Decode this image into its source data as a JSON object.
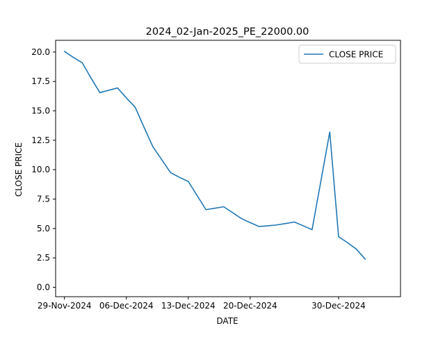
{
  "chart_data": {
    "type": "line",
    "title": "2024_02-Jan-2025_PE_22000.00",
    "xlabel": "DATE",
    "ylabel": "CLOSE PRICE",
    "legend": {
      "placement": "top-right"
    },
    "grid": false,
    "xlim": [
      "2024-11-28",
      "2025-01-06"
    ],
    "ylim": [
      -0.8,
      21.0
    ],
    "x_ticks": [
      {
        "date": "2024-11-29",
        "label": "29-Nov-2024"
      },
      {
        "date": "2024-12-06",
        "label": "06-Dec-2024"
      },
      {
        "date": "2024-12-13",
        "label": "13-Dec-2024"
      },
      {
        "date": "2024-12-20",
        "label": "20-Dec-2024"
      },
      {
        "date": "2024-12-30",
        "label": "30-Dec-2024"
      }
    ],
    "y_ticks": [
      {
        "value": 0.0,
        "label": "0.0"
      },
      {
        "value": 2.5,
        "label": "2.5"
      },
      {
        "value": 5.0,
        "label": "5.0"
      },
      {
        "value": 7.5,
        "label": "7.5"
      },
      {
        "value": 10.0,
        "label": "10.0"
      },
      {
        "value": 12.5,
        "label": "12.5"
      },
      {
        "value": 15.0,
        "label": "15.0"
      },
      {
        "value": 17.5,
        "label": "17.5"
      },
      {
        "value": 20.0,
        "label": "20.0"
      }
    ],
    "series": [
      {
        "name": "CLOSE PRICE",
        "color": "#1f77b4",
        "x": [
          "2024-11-29",
          "2024-11-30",
          "2024-12-01",
          "2024-12-02",
          "2024-12-03",
          "2024-12-04",
          "2024-12-05",
          "2024-12-06",
          "2024-12-07",
          "2024-12-08",
          "2024-12-09",
          "2024-12-10",
          "2024-12-11",
          "2024-12-12",
          "2024-12-13",
          "2024-12-14",
          "2024-12-15",
          "2024-12-16",
          "2024-12-17",
          "2024-12-18",
          "2024-12-19",
          "2024-12-20",
          "2024-12-21",
          "2024-12-22",
          "2024-12-23",
          "2024-12-24",
          "2024-12-25",
          "2024-12-26",
          "2024-12-27",
          "2024-12-28",
          "2024-12-29",
          "2024-12-30",
          "2024-12-31",
          "2025-01-01",
          "2025-01-02"
        ],
        "y": [
          20.05,
          19.55,
          19.1,
          17.8,
          16.55,
          16.75,
          16.95,
          16.1,
          15.3,
          13.6,
          11.95,
          10.85,
          9.75,
          9.35,
          9.0,
          7.8,
          6.6,
          6.72,
          6.85,
          6.35,
          5.85,
          5.5,
          5.17,
          5.23,
          5.3,
          5.42,
          5.55,
          5.23,
          4.9,
          9.05,
          13.2,
          4.3,
          3.8,
          3.25,
          2.4
        ]
      }
    ]
  }
}
